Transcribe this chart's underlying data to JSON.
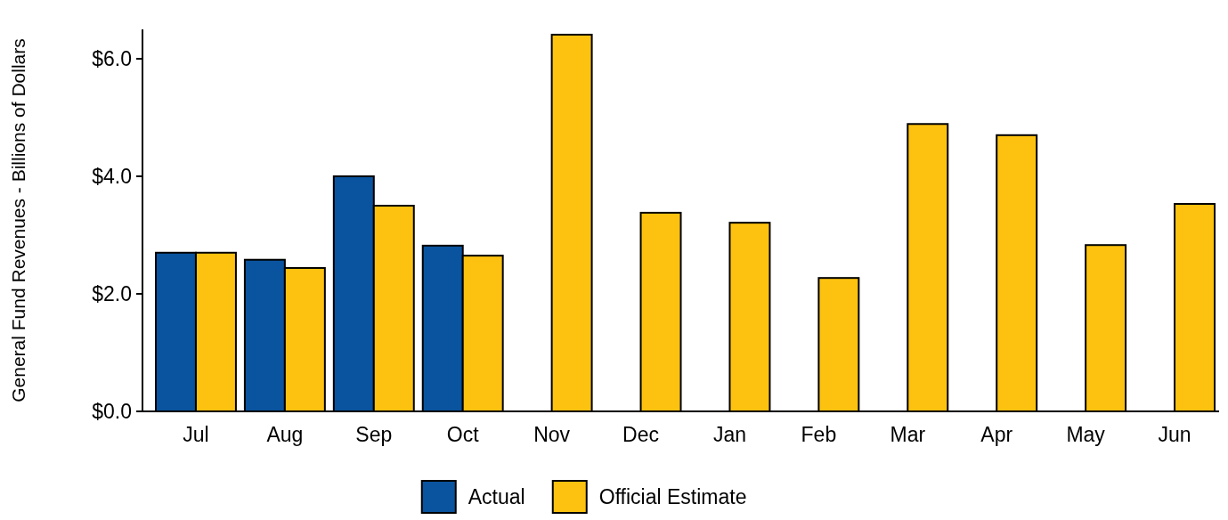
{
  "chart_data": {
    "type": "bar",
    "ylabel": "General Fund Revenues - Billions of Dollars",
    "categories": [
      "Jul",
      "Aug",
      "Sep",
      "Oct",
      "Nov",
      "Dec",
      "Jan",
      "Feb",
      "Mar",
      "Apr",
      "May",
      "Jun"
    ],
    "series": [
      {
        "name": "Actual",
        "color": "#0a539e",
        "values": [
          2.7,
          2.58,
          4.0,
          2.82,
          null,
          null,
          null,
          null,
          null,
          null,
          null,
          null
        ]
      },
      {
        "name": "Official Estimate",
        "color": "#fdc20f",
        "values": [
          2.7,
          2.44,
          3.5,
          2.65,
          6.41,
          3.38,
          3.21,
          2.27,
          4.89,
          4.7,
          2.83,
          3.53
        ]
      }
    ],
    "ylim": [
      0,
      6.5
    ],
    "yticks": [
      {
        "value": 0,
        "label": "$0.0"
      },
      {
        "value": 2,
        "label": "$2.0"
      },
      {
        "value": 4,
        "label": "$4.0"
      },
      {
        "value": 6,
        "label": "$6.0"
      }
    ],
    "grid": false,
    "legend": "bottom"
  }
}
